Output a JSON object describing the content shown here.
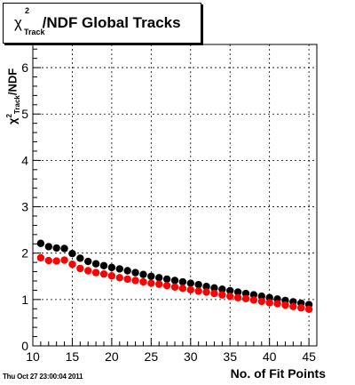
{
  "chart_data": {
    "type": "scatter",
    "title_parts": {
      "chi": "χ",
      "sup": "2",
      "sub": "Track",
      "rest": "/NDF  Global Tracks"
    },
    "ylabel_parts": {
      "chi": "χ",
      "sup": "2",
      "sub": "Track",
      "rest": "/NDF"
    },
    "xlabel": "No. of Fit Points",
    "xlim": [
      10,
      46
    ],
    "ylim": [
      0,
      6.5
    ],
    "x_ticks": [
      10,
      15,
      20,
      25,
      30,
      35,
      40,
      45
    ],
    "y_ticks": [
      0,
      1,
      2,
      3,
      4,
      5,
      6
    ],
    "grid": true,
    "series": [
      {
        "color": "#000000",
        "x": [
          11,
          12,
          13,
          14,
          15,
          16,
          17,
          18,
          19,
          20,
          21,
          22,
          23,
          24,
          25,
          26,
          27,
          28,
          29,
          30,
          31,
          32,
          33,
          34,
          35,
          36,
          37,
          38,
          39,
          40,
          41,
          42,
          43,
          44,
          45
        ],
        "y": [
          2.21,
          2.14,
          2.11,
          2.1,
          1.99,
          1.89,
          1.82,
          1.77,
          1.73,
          1.69,
          1.66,
          1.62,
          1.58,
          1.54,
          1.5,
          1.47,
          1.44,
          1.41,
          1.38,
          1.35,
          1.32,
          1.28,
          1.25,
          1.22,
          1.19,
          1.16,
          1.13,
          1.1,
          1.07,
          1.04,
          1.01,
          0.98,
          0.95,
          0.92,
          0.89
        ]
      },
      {
        "color": "#ff0000",
        "x": [
          11,
          12,
          13,
          14,
          15,
          16,
          17,
          18,
          19,
          20,
          21,
          22,
          23,
          24,
          25,
          26,
          27,
          28,
          29,
          30,
          31,
          32,
          33,
          34,
          35,
          36,
          37,
          38,
          39,
          40,
          41,
          42,
          43,
          44,
          45
        ],
        "y": [
          1.9,
          1.84,
          1.83,
          1.85,
          1.76,
          1.67,
          1.62,
          1.58,
          1.55,
          1.51,
          1.47,
          1.44,
          1.41,
          1.38,
          1.35,
          1.33,
          1.3,
          1.27,
          1.24,
          1.21,
          1.18,
          1.16,
          1.13,
          1.1,
          1.07,
          1.04,
          1.02,
          0.99,
          0.96,
          0.93,
          0.91,
          0.88,
          0.85,
          0.82,
          0.79
        ]
      }
    ]
  },
  "timestamp": "Thu Oct 27 23:00:04 2011"
}
